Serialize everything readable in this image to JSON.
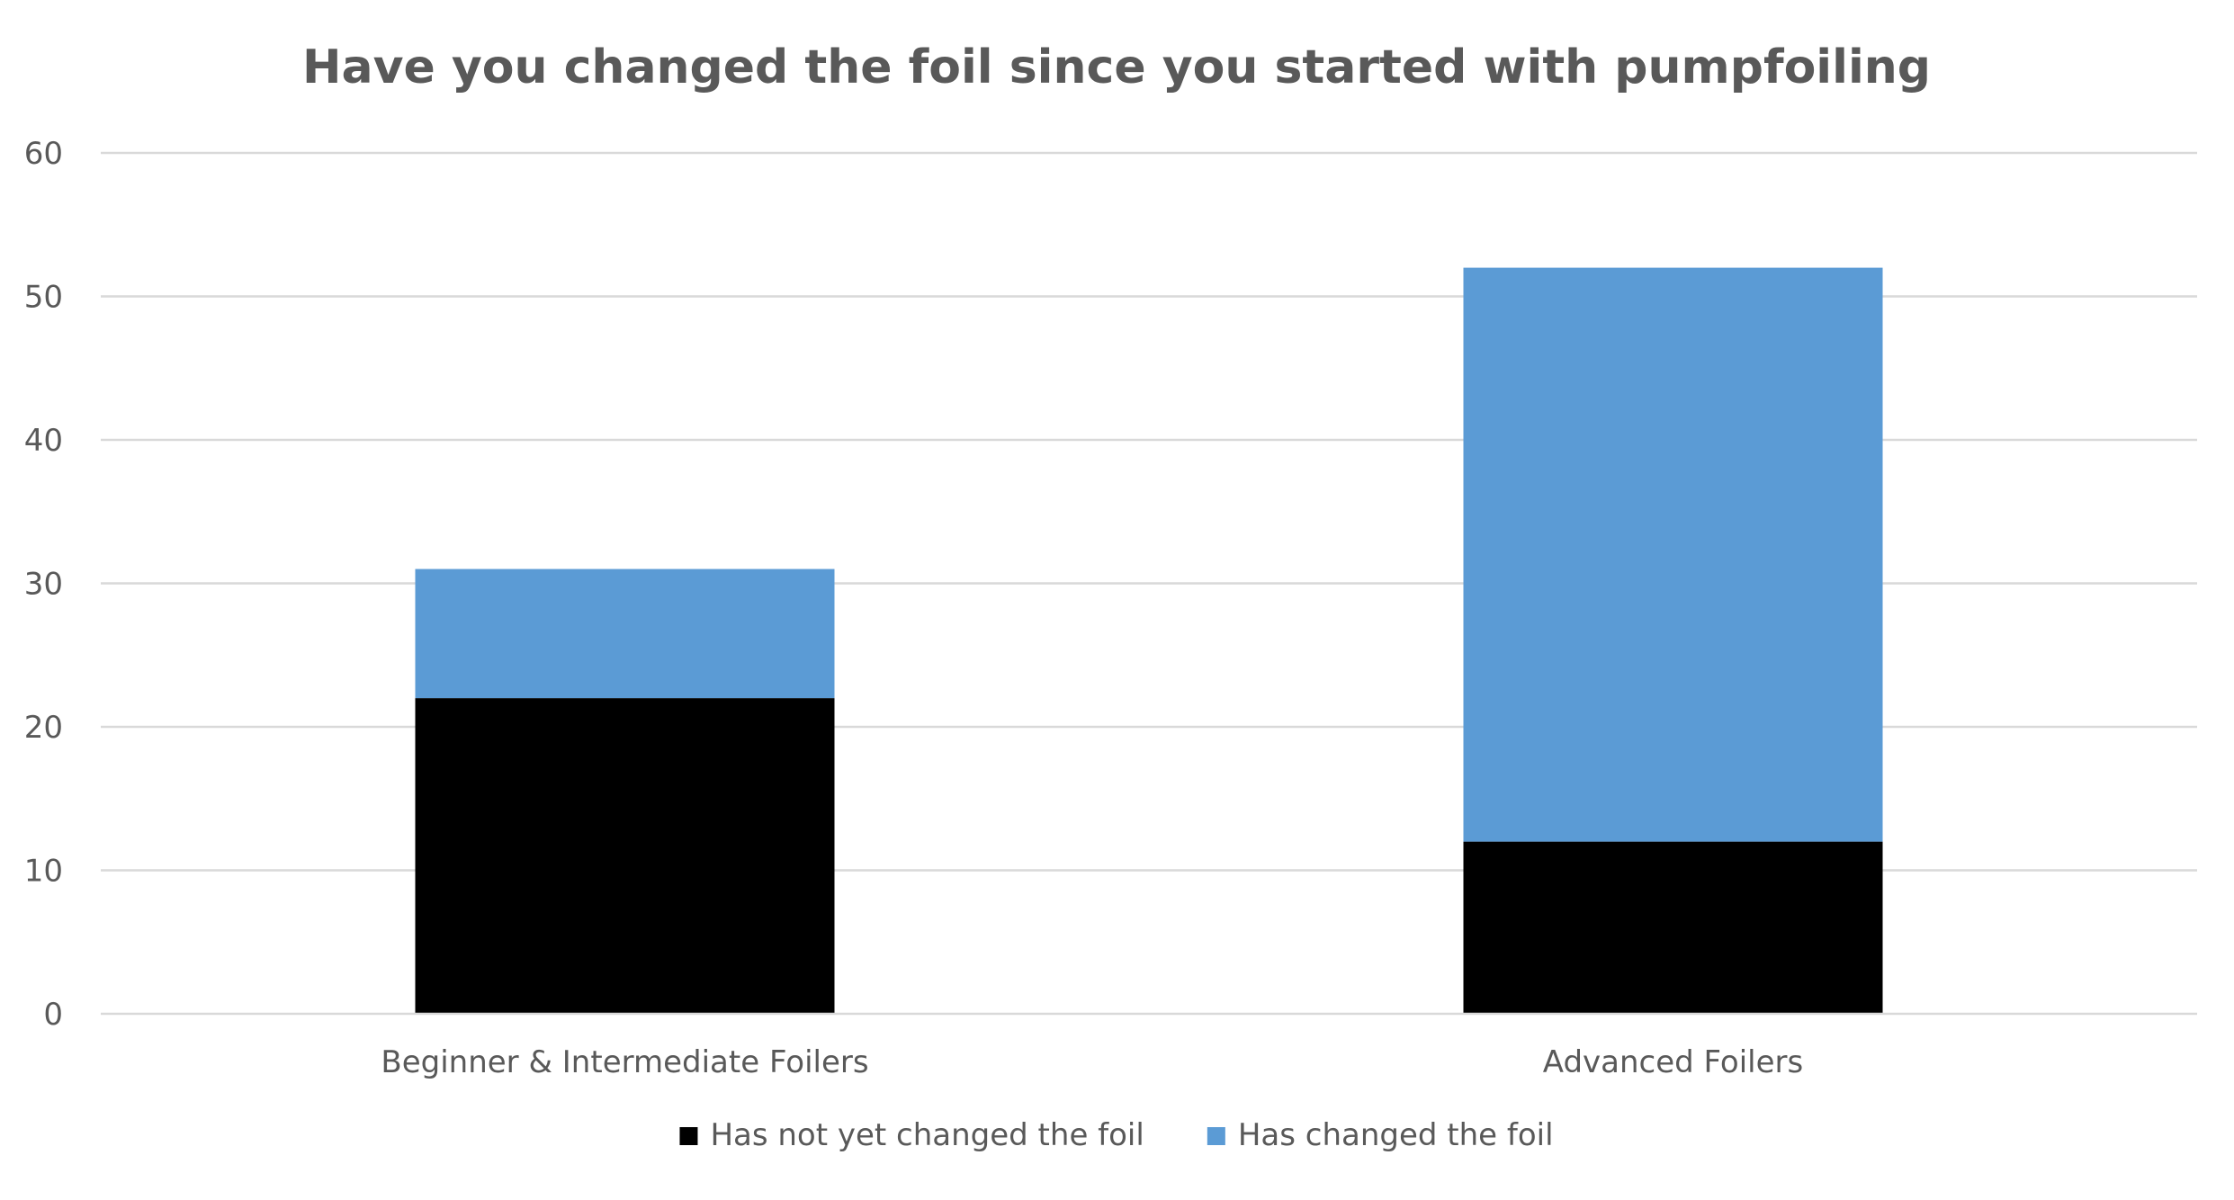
{
  "chart_data": {
    "type": "bar",
    "stacked": true,
    "title": "Have you changed the foil since you started with pumpfoiling",
    "xlabel": "",
    "ylabel": "",
    "categories": [
      "Beginner & Intermediate Foilers",
      "Advanced Foilers"
    ],
    "series": [
      {
        "name": "Has not yet changed the foil",
        "values": [
          22,
          12
        ],
        "color": "#000000"
      },
      {
        "name": "Has changed the foil",
        "values": [
          9,
          40
        ],
        "color": "#5b9bd5"
      }
    ],
    "ylim": [
      0,
      60
    ],
    "yticks": [
      0,
      10,
      20,
      30,
      40,
      50,
      60
    ],
    "grid": true,
    "legend": "bottom"
  }
}
